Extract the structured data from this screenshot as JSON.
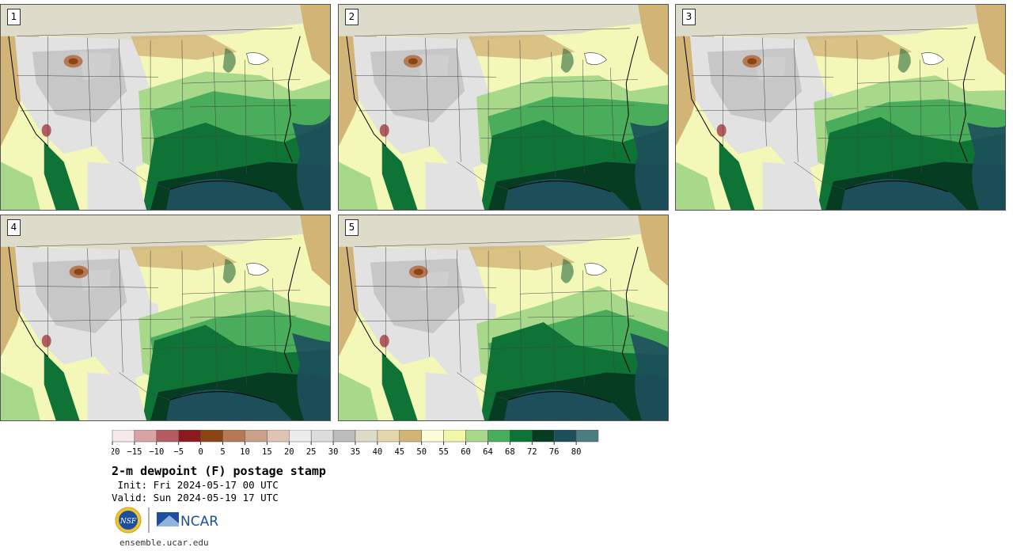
{
  "figure": {
    "title": "2-m dewpoint (F) postage stamp",
    "init": " Init: Fri 2024-05-17 00 UTC",
    "valid": "Valid: Sun 2024-05-19 17 UTC",
    "url": "ensemble.ucar.edu"
  },
  "panels": [
    {
      "label": "1"
    },
    {
      "label": "2"
    },
    {
      "label": "3"
    },
    {
      "label": "4"
    },
    {
      "label": "5"
    }
  ],
  "colorbar": {
    "ticks": [
      "−20",
      "−15",
      "−10",
      "−5",
      "0",
      "5",
      "10",
      "15",
      "20",
      "25",
      "30",
      "35",
      "40",
      "45",
      "50",
      "55",
      "60",
      "64",
      "68",
      "72",
      "76",
      "80"
    ],
    "colors": [
      "#f5e9e9",
      "#d9a3a6",
      "#b45c60",
      "#8b1a1f",
      "#8a4513",
      "#b57a55",
      "#c9a08a",
      "#e0c3b3",
      "#ececec",
      "#dcdcdc",
      "#bcbcbc",
      "#dddccb",
      "#e3d6a8",
      "#d2b477",
      "#fafdd8",
      "#f3f7a8",
      "#a8d98a",
      "#4aad5b",
      "#0e7335",
      "#063d22",
      "#1d4f5b",
      "#4a7c80"
    ]
  },
  "logos": {
    "nsf": "NSF",
    "ncar": "NCAR"
  },
  "map_colors": {
    "land_dry": "#e2e2e2",
    "land_gray": "#bdbdbd",
    "tan": "#d2b477",
    "light_yellow": "#f3f7b8",
    "light_green": "#a8d98a",
    "mid_green": "#4aad5b",
    "dark_green": "#0e7335",
    "darkest_green": "#063d22",
    "gulf": "#1d4f5b"
  }
}
